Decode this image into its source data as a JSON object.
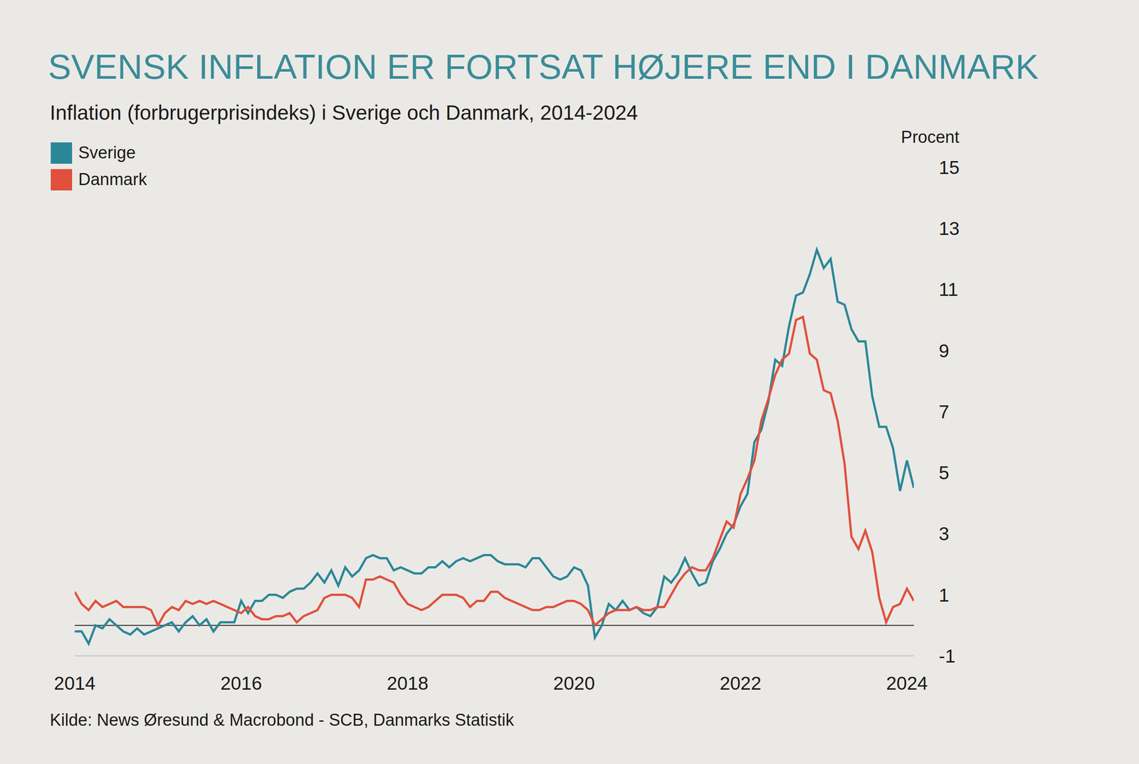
{
  "chart_data": {
    "type": "line",
    "title": "SVENSK INFLATION ER FORTSAT HØJERE END I DANMARK",
    "subtitle": "Inflation (forbrugerprisindeks) i Sverige och Danmark, 2014-2024",
    "y_label": "Procent",
    "source": "Kilde: News Øresund & Macrobond - SCB, Danmarks Statistik",
    "legend": "top-left",
    "grid": false,
    "baseline": 0,
    "x": [
      2014,
      2014.083,
      2014.167,
      2014.25,
      2014.333,
      2014.417,
      2014.5,
      2014.583,
      2014.667,
      2014.75,
      2014.833,
      2014.917,
      2015,
      2015.083,
      2015.167,
      2015.25,
      2015.333,
      2015.417,
      2015.5,
      2015.583,
      2015.667,
      2015.75,
      2015.833,
      2015.917,
      2016,
      2016.083,
      2016.167,
      2016.25,
      2016.333,
      2016.417,
      2016.5,
      2016.583,
      2016.667,
      2016.75,
      2016.833,
      2016.917,
      2017,
      2017.083,
      2017.167,
      2017.25,
      2017.333,
      2017.417,
      2017.5,
      2017.583,
      2017.667,
      2017.75,
      2017.833,
      2017.917,
      2018,
      2018.083,
      2018.167,
      2018.25,
      2018.333,
      2018.417,
      2018.5,
      2018.583,
      2018.667,
      2018.75,
      2018.833,
      2018.917,
      2019,
      2019.083,
      2019.167,
      2019.25,
      2019.333,
      2019.417,
      2019.5,
      2019.583,
      2019.667,
      2019.75,
      2019.833,
      2019.917,
      2020,
      2020.083,
      2020.167,
      2020.25,
      2020.333,
      2020.417,
      2020.5,
      2020.583,
      2020.667,
      2020.75,
      2020.833,
      2020.917,
      2021,
      2021.083,
      2021.167,
      2021.25,
      2021.333,
      2021.417,
      2021.5,
      2021.583,
      2021.667,
      2021.75,
      2021.833,
      2021.917,
      2022,
      2022.083,
      2022.167,
      2022.25,
      2022.333,
      2022.417,
      2022.5,
      2022.583,
      2022.667,
      2022.75,
      2022.833,
      2022.917,
      2023,
      2023.083,
      2023.167,
      2023.25,
      2023.333,
      2023.417,
      2023.5,
      2023.583,
      2023.667,
      2023.75,
      2023.833,
      2023.917,
      2024,
      2024.083
    ],
    "xlim": [
      2014,
      2024.083
    ],
    "xticks": [
      2014,
      2016,
      2018,
      2020,
      2022,
      2024
    ],
    "ylim": [
      -1,
      15
    ],
    "yticks": [
      -1,
      1,
      3,
      5,
      7,
      9,
      11,
      13,
      15
    ],
    "series": [
      {
        "name": "Sverige",
        "color": "#2a8798",
        "values": [
          -0.2,
          -0.2,
          -0.6,
          0.0,
          -0.1,
          0.2,
          0.0,
          -0.2,
          -0.3,
          -0.1,
          -0.3,
          -0.2,
          -0.1,
          0.0,
          0.1,
          -0.2,
          0.1,
          0.3,
          0.0,
          0.2,
          -0.2,
          0.1,
          0.1,
          0.1,
          0.8,
          0.4,
          0.8,
          0.8,
          1.0,
          1.0,
          0.9,
          1.1,
          1.2,
          1.2,
          1.4,
          1.7,
          1.4,
          1.8,
          1.3,
          1.9,
          1.6,
          1.8,
          2.2,
          2.3,
          2.2,
          2.2,
          1.8,
          1.9,
          1.8,
          1.7,
          1.7,
          1.9,
          1.9,
          2.1,
          1.9,
          2.1,
          2.2,
          2.1,
          2.2,
          2.3,
          2.3,
          2.1,
          2.0,
          2.0,
          2.0,
          1.9,
          2.2,
          2.2,
          1.9,
          1.6,
          1.5,
          1.6,
          1.9,
          1.8,
          1.3,
          -0.4,
          0.0,
          0.7,
          0.5,
          0.8,
          0.5,
          0.6,
          0.4,
          0.3,
          0.6,
          1.6,
          1.4,
          1.7,
          2.2,
          1.7,
          1.3,
          1.4,
          2.1,
          2.5,
          3.0,
          3.3,
          3.9,
          4.3,
          6.0,
          6.4,
          7.3,
          8.7,
          8.5,
          9.8,
          10.8,
          10.9,
          11.5,
          12.3,
          11.7,
          12.0,
          10.6,
          10.5,
          9.7,
          9.3,
          9.3,
          7.5,
          6.5,
          6.5,
          5.8,
          4.4,
          5.4,
          4.5
        ]
      },
      {
        "name": "Danmark",
        "color": "#e0503c",
        "values": [
          1.1,
          0.7,
          0.5,
          0.8,
          0.6,
          0.7,
          0.8,
          0.6,
          0.6,
          0.6,
          0.6,
          0.5,
          0.0,
          0.4,
          0.6,
          0.5,
          0.8,
          0.7,
          0.8,
          0.7,
          0.8,
          0.7,
          0.6,
          0.5,
          0.4,
          0.6,
          0.3,
          0.2,
          0.2,
          0.3,
          0.3,
          0.4,
          0.1,
          0.3,
          0.4,
          0.5,
          0.9,
          1.0,
          1.0,
          1.0,
          0.9,
          0.6,
          1.5,
          1.5,
          1.6,
          1.5,
          1.4,
          1.0,
          0.7,
          0.6,
          0.5,
          0.6,
          0.8,
          1.0,
          1.0,
          1.0,
          0.9,
          0.6,
          0.8,
          0.8,
          1.1,
          1.1,
          0.9,
          0.8,
          0.7,
          0.6,
          0.5,
          0.5,
          0.6,
          0.6,
          0.7,
          0.8,
          0.8,
          0.7,
          0.5,
          0.0,
          0.2,
          0.4,
          0.5,
          0.5,
          0.5,
          0.6,
          0.5,
          0.5,
          0.6,
          0.6,
          1.0,
          1.4,
          1.7,
          1.9,
          1.8,
          1.8,
          2.2,
          2.8,
          3.4,
          3.2,
          4.3,
          4.8,
          5.4,
          6.7,
          7.4,
          8.2,
          8.7,
          8.9,
          10.0,
          10.1,
          8.9,
          8.7,
          7.7,
          7.6,
          6.7,
          5.3,
          2.9,
          2.5,
          3.1,
          2.4,
          0.9,
          0.1,
          0.6,
          0.7,
          1.2,
          0.8
        ]
      }
    ]
  }
}
